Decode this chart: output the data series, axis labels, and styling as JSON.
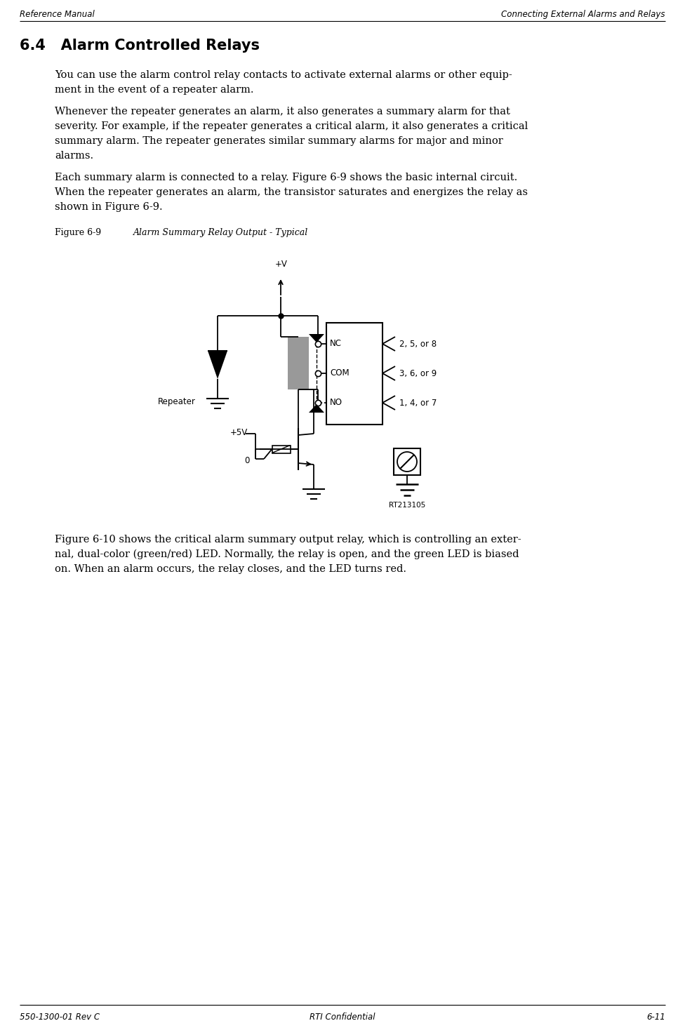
{
  "header_left": "Reference Manual",
  "header_right": "Connecting External Alarms and Relays",
  "footer_left": "550-1300-01 Rev C",
  "footer_center": "RTI Confidential",
  "footer_right": "6-11",
  "section_title": "6.4   Alarm Controlled Relays",
  "para1_lines": [
    "You can use the alarm control relay contacts to activate external alarms or other equip-",
    "ment in the event of a repeater alarm."
  ],
  "para2_lines": [
    "Whenever the repeater generates an alarm, it also generates a summary alarm for that",
    "severity. For example, if the repeater generates a critical alarm, it also generates a critical",
    "summary alarm. The repeater generates similar summary alarms for major and minor",
    "alarms."
  ],
  "para3_lines": [
    "Each summary alarm is connected to a relay. Figure 6-9 shows the basic internal circuit.",
    "When the repeater generates an alarm, the transistor saturates and energizes the relay as",
    "shown in Figure 6-9."
  ],
  "fig_label": "Figure 6-9",
  "fig_caption": "Alarm Summary Relay Output - Typical",
  "para4_lines": [
    "Figure 6-10 shows the critical alarm summary output relay, which is controlling an exter-",
    "nal, dual-color (green/red) LED. Normally, the relay is open, and the green LED is biased",
    "on. When an alarm occurs, the relay closes, and the LED turns red."
  ],
  "rt_label": "RT213105",
  "bg_color": "#ffffff",
  "gray_fill": "#999999",
  "header_font_size": 8.5,
  "footer_font_size": 8.5,
  "body_font_size": 10.5,
  "section_font_size": 15,
  "fig_label_font_size": 9,
  "circuit_font_size": 8.5
}
